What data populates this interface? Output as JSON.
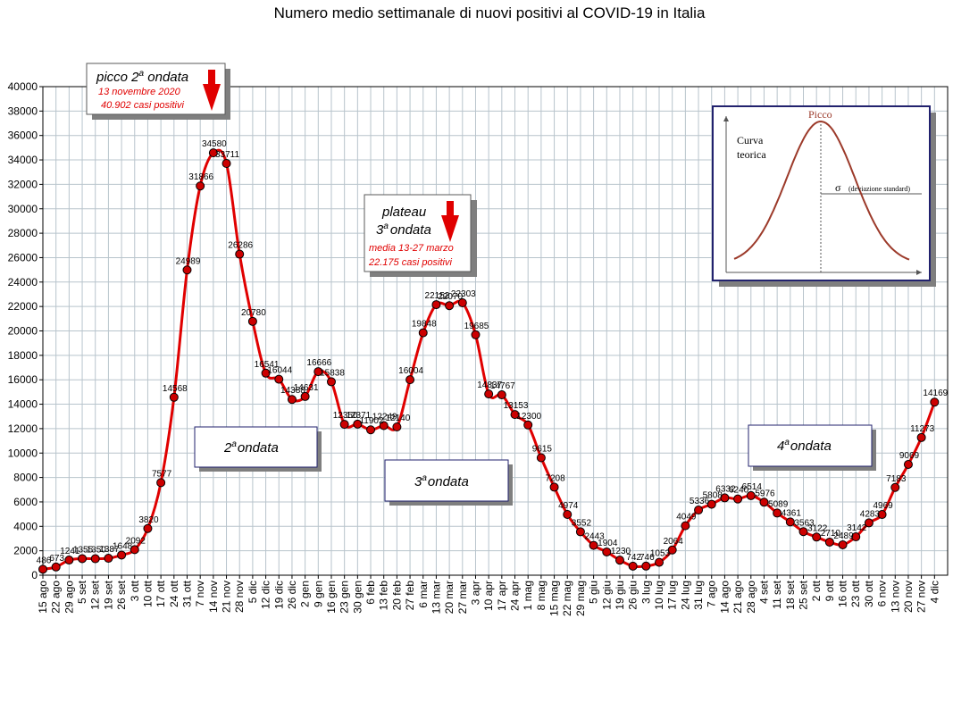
{
  "chart_data": {
    "type": "line",
    "title": "Numero medio settimanale di nuovi positivi al COVID-19 in Italia",
    "xlabel": "",
    "ylabel": "",
    "ylim": [
      0,
      40000
    ],
    "y_ticks": [
      0,
      2000,
      4000,
      6000,
      8000,
      10000,
      12000,
      14000,
      16000,
      18000,
      20000,
      22000,
      24000,
      26000,
      28000,
      30000,
      32000,
      34000,
      36000,
      38000,
      40000
    ],
    "grid": true,
    "categories": [
      "15 ago",
      "22 ago",
      "29 ago",
      "5 set",
      "12 set",
      "19 set",
      "26 set",
      "3 ott",
      "10 ott",
      "17 ott",
      "24 ott",
      "31 ott",
      "7 nov",
      "14 nov",
      "21 nov",
      "28 nov",
      "5 dic",
      "12 dic",
      "19 dic",
      "26 dic",
      "2 gen",
      "9 gen",
      "16 gen",
      "23 gen",
      "30 gen",
      "6 feb",
      "13 feb",
      "20 feb",
      "27 feb",
      "6 mar",
      "13 mar",
      "20 mar",
      "27 mar",
      "3 apr",
      "10 apr",
      "17 apr",
      "24 apr",
      "1 mag",
      "8 mag",
      "15 mag",
      "22 mag",
      "29 mag",
      "5 giu",
      "12 giu",
      "19 giu",
      "26 giu",
      "3 lug",
      "10 lug",
      "17 lug",
      "24 lug",
      "31 lug",
      "7 ago",
      "14 ago",
      "21 ago",
      "28 ago",
      "4 set",
      "11 set",
      "18 set",
      "25 set",
      "2 ott",
      "9 ott",
      "16 ott",
      "23 ott",
      "30 ott",
      "6 nov",
      "13 nov",
      "20 nov",
      "27 nov",
      "4 dic"
    ],
    "series": [
      {
        "name": "",
        "color": "#e00000",
        "marker_color": "#cc0000",
        "values": [
          486,
          673,
          1241,
          1355,
          1350,
          1387,
          1648,
          2092,
          3820,
          7577,
          14568,
          24989,
          31866,
          34580,
          33711,
          26286,
          20780,
          16541,
          16044,
          14388,
          14631,
          16666,
          15838,
          12350,
          12371,
          11902,
          12249,
          12140,
          16004,
          19848,
          22152,
          22070,
          22303,
          19685,
          14837,
          14767,
          13153,
          12300,
          9615,
          7208,
          4974,
          3552,
          2443,
          1904,
          1230,
          742,
          746,
          1053,
          2064,
          4049,
          5336,
          5808,
          6332,
          6240,
          6514,
          5976,
          5089,
          4361,
          3563,
          3122,
          2710,
          2489,
          3142,
          4283,
          4969,
          7183,
          9069,
          11273,
          14169
        ],
        "labels": [
          "486",
          "673",
          "1241",
          "1355",
          "1350",
          "1387",
          "1648",
          "2092",
          "3820",
          "7577",
          "14568",
          "24989",
          "31866",
          "34580",
          "33711",
          "26286",
          "20780",
          "16541",
          "16044",
          "14388",
          "14631",
          "16666",
          "15838",
          "12350",
          "12371",
          "11902",
          "12249",
          "12140",
          "16004",
          "19848",
          "22152",
          "22070",
          "22303",
          "19685",
          "14837",
          "14767",
          "13153",
          "12300",
          "9615",
          "7208",
          "4974",
          "3552",
          "2443",
          "1904",
          "1230",
          "742",
          "746",
          "1053",
          "2064",
          "4049",
          "5336",
          "5808",
          "6332",
          "6240",
          "6514",
          "5976",
          "5089",
          "4361",
          "3563",
          "3122",
          "2710",
          "2489",
          "3142",
          "4283",
          "4969",
          "7183",
          "9069",
          "11273",
          "14169"
        ]
      }
    ]
  },
  "annotations": {
    "peak2": {
      "title_prefix": "picco 2",
      "title_sup": "a",
      "title_suffix": " ondata",
      "line1": "13 novembre 2020",
      "line2": "40.902 casi positivi"
    },
    "plateau3": {
      "line1": "plateau",
      "line2_prefix": "3",
      "line2_sup": "a",
      "line2_suffix": "ondata",
      "line3": "media 13-27 marzo",
      "line4": "22.175 casi positivi"
    },
    "wave2": {
      "prefix": "2",
      "sup": "a",
      "suffix": "ondata"
    },
    "wave3": {
      "prefix": "3",
      "sup": "a",
      "suffix": "ondata"
    },
    "wave4": {
      "prefix": "4",
      "sup": "a",
      "suffix": "ondata"
    }
  },
  "inset": {
    "peak_label": "Picco",
    "curve_label_1": "Curva",
    "curve_label_2": "teorica",
    "sigma_symbol": "σ",
    "sigma_label": "(deviazione standard)"
  },
  "colors": {
    "line": "#e00000",
    "marker": "#cc0000",
    "grid": "#b8c4cc",
    "arrow": "#e00000",
    "inset_curve": "#9c3a2a",
    "inset_border": "#22226e"
  }
}
